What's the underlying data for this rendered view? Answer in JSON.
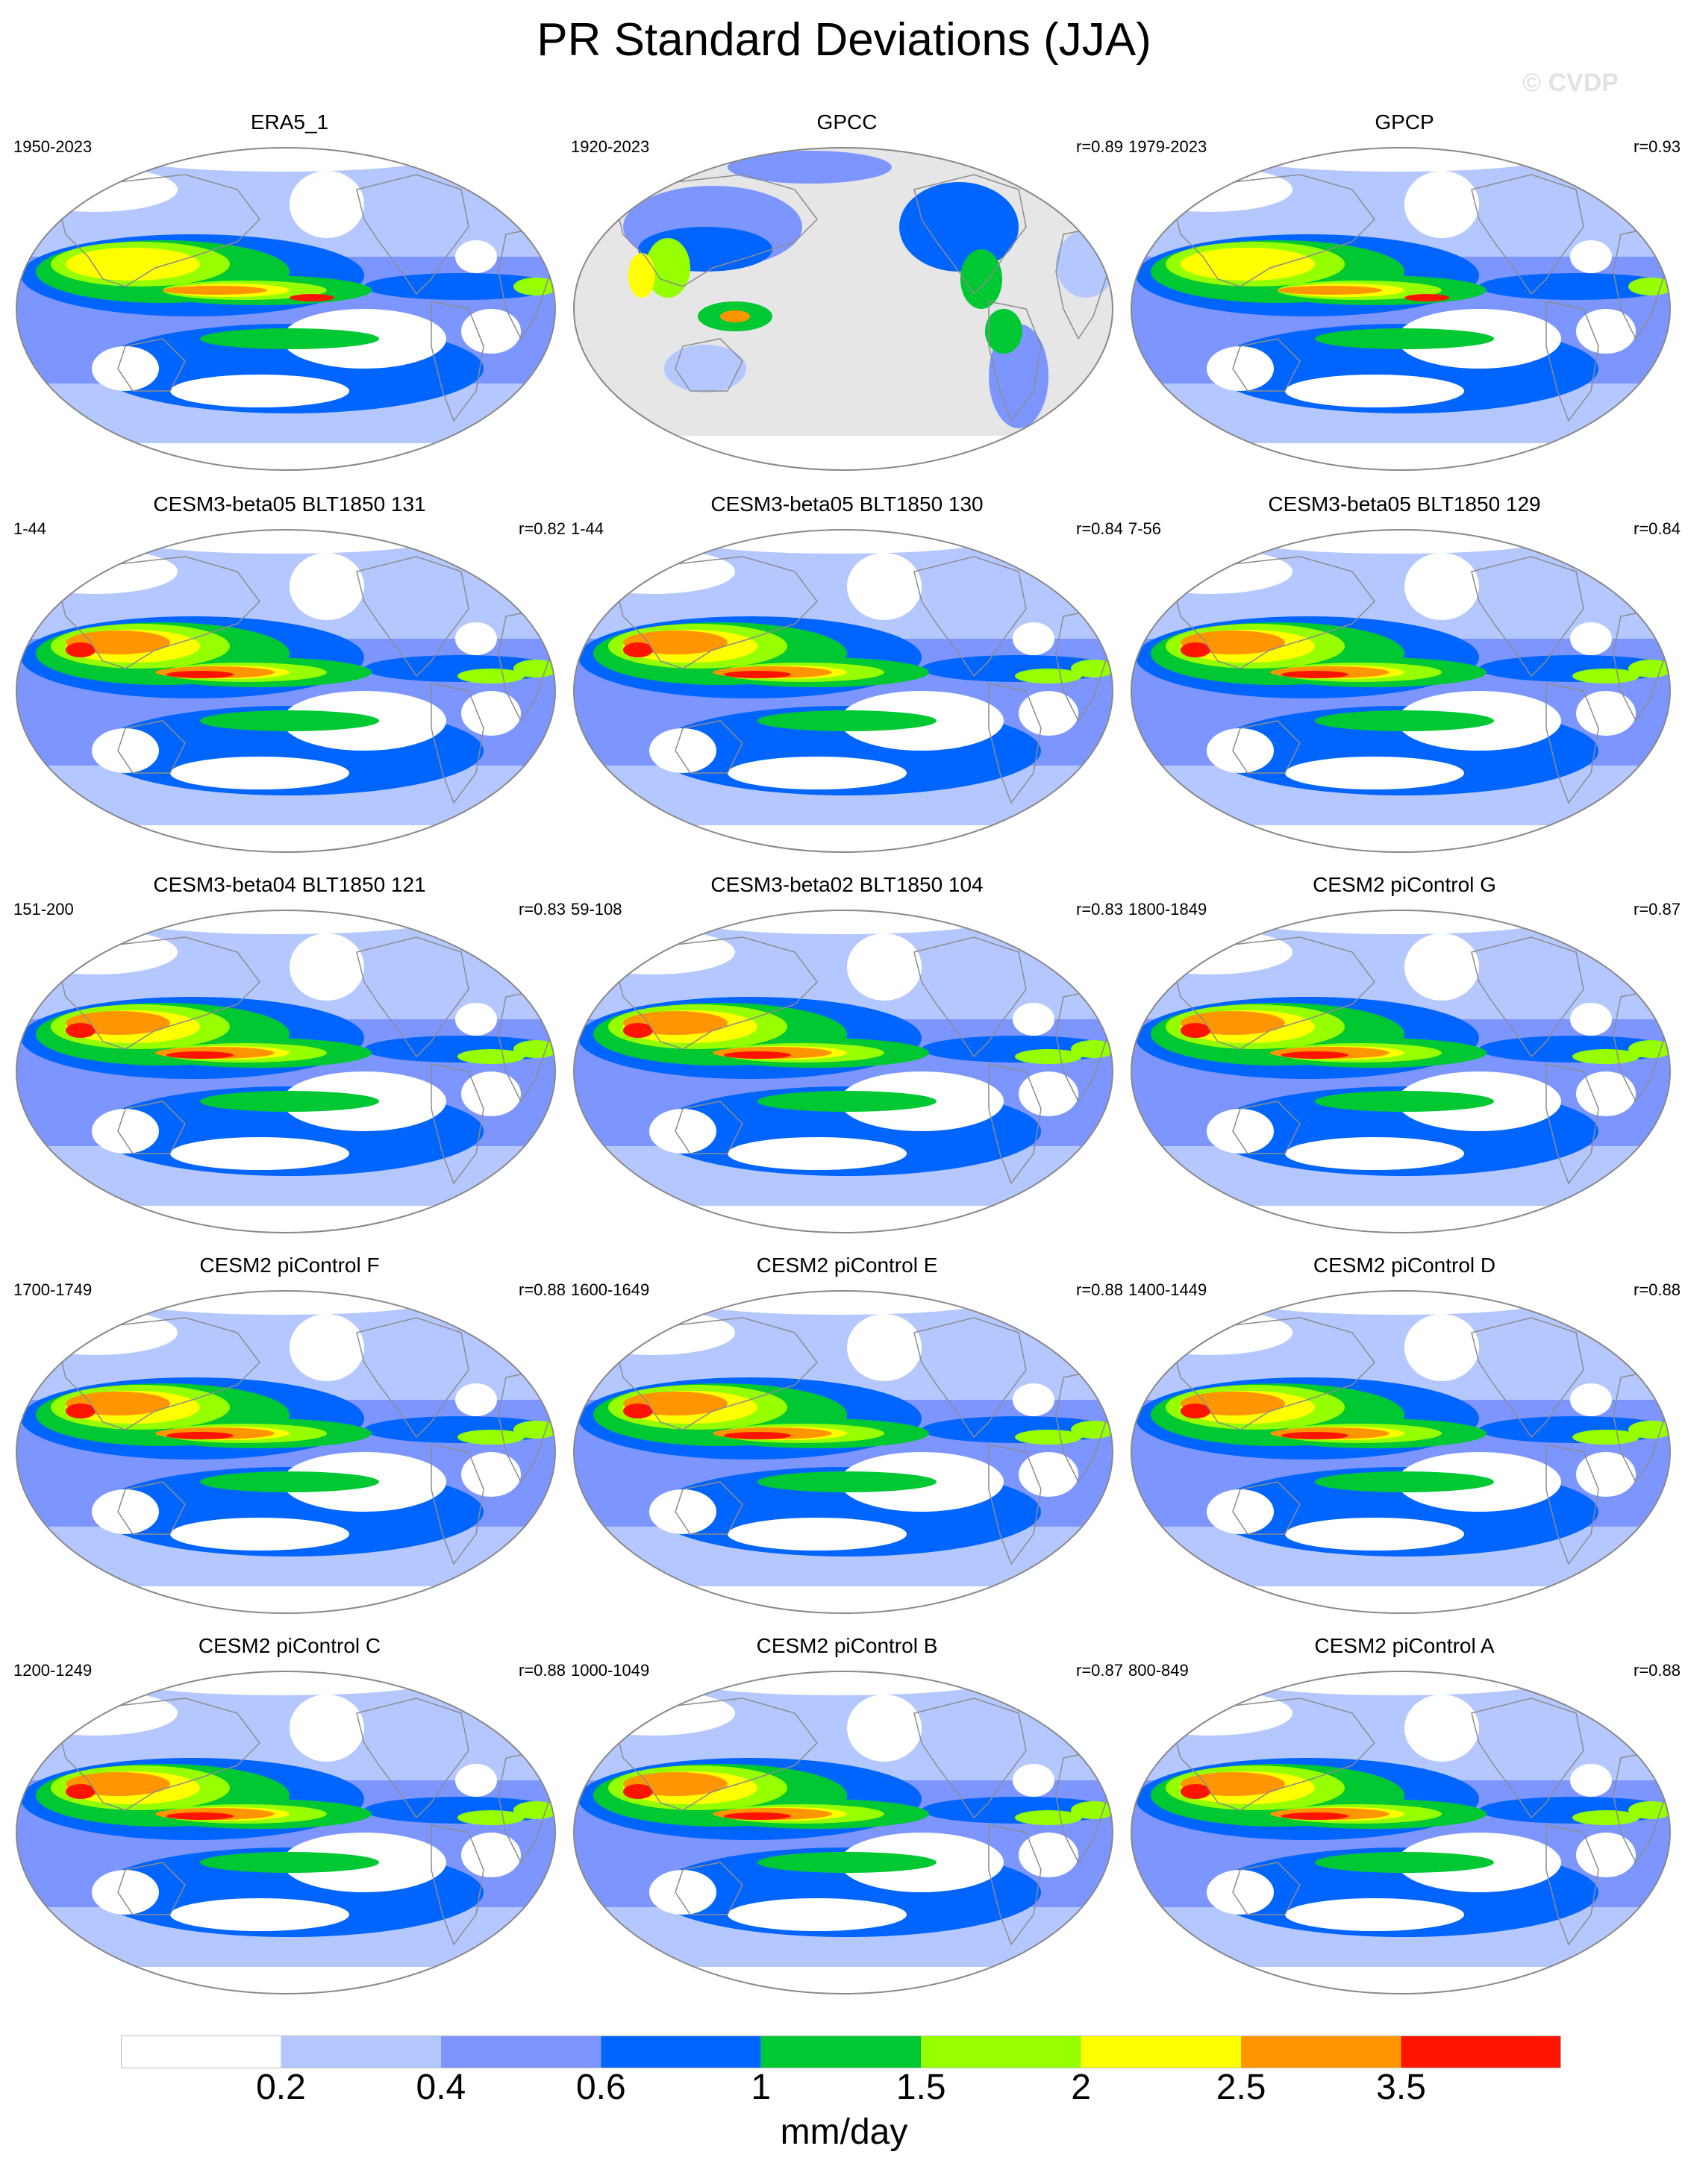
{
  "title": "PR Standard Deviations (JJA)",
  "watermark": "© CVDP",
  "panels": [
    {
      "title": "ERA5_1",
      "period": "1950-2023",
      "corr": "",
      "style": "obs"
    },
    {
      "title": "GPCC",
      "period": "1920-2023",
      "corr": "r=0.89",
      "style": "land"
    },
    {
      "title": "GPCP",
      "period": "1979-2023",
      "corr": "r=0.93",
      "style": "obs"
    },
    {
      "title": "CESM3-beta05 BLT1850 131",
      "period": "1-44",
      "corr": "r=0.82",
      "style": "model"
    },
    {
      "title": "CESM3-beta05 BLT1850 130",
      "period": "1-44",
      "corr": "r=0.84",
      "style": "model"
    },
    {
      "title": "CESM3-beta05 BLT1850 129",
      "period": "7-56",
      "corr": "r=0.84",
      "style": "model"
    },
    {
      "title": "CESM3-beta04 BLT1850 121",
      "period": "151-200",
      "corr": "r=0.83",
      "style": "model"
    },
    {
      "title": "CESM3-beta02 BLT1850 104",
      "period": "59-108",
      "corr": "r=0.83",
      "style": "model"
    },
    {
      "title": "CESM2 piControl G",
      "period": "1800-1849",
      "corr": "r=0.87",
      "style": "model"
    },
    {
      "title": "CESM2 piControl F",
      "period": "1700-1749",
      "corr": "r=0.88",
      "style": "model"
    },
    {
      "title": "CESM2 piControl E",
      "period": "1600-1649",
      "corr": "r=0.88",
      "style": "model"
    },
    {
      "title": "CESM2 piControl D",
      "period": "1400-1449",
      "corr": "r=0.88",
      "style": "model"
    },
    {
      "title": "CESM2 piControl C",
      "period": "1200-1249",
      "corr": "r=0.88",
      "style": "model"
    },
    {
      "title": "CESM2 piControl B",
      "period": "1000-1049",
      "corr": "r=0.87",
      "style": "model"
    },
    {
      "title": "CESM2 piControl A",
      "period": "800-849",
      "corr": "r=0.88",
      "style": "model"
    }
  ],
  "colorbar": {
    "colors": [
      "#ffffff",
      "#b4c8ff",
      "#7d96ff",
      "#0064ff",
      "#00c832",
      "#96ff00",
      "#ffff00",
      "#ff9600",
      "#ff1400"
    ],
    "labels": [
      "0.2",
      "0.4",
      "0.6",
      "1",
      "1.5",
      "2",
      "2.5",
      "3.5"
    ],
    "units": "mm/day"
  },
  "map_colors": {
    "land_gray": "#e6e6e6",
    "coast": "#8c8c8c"
  }
}
